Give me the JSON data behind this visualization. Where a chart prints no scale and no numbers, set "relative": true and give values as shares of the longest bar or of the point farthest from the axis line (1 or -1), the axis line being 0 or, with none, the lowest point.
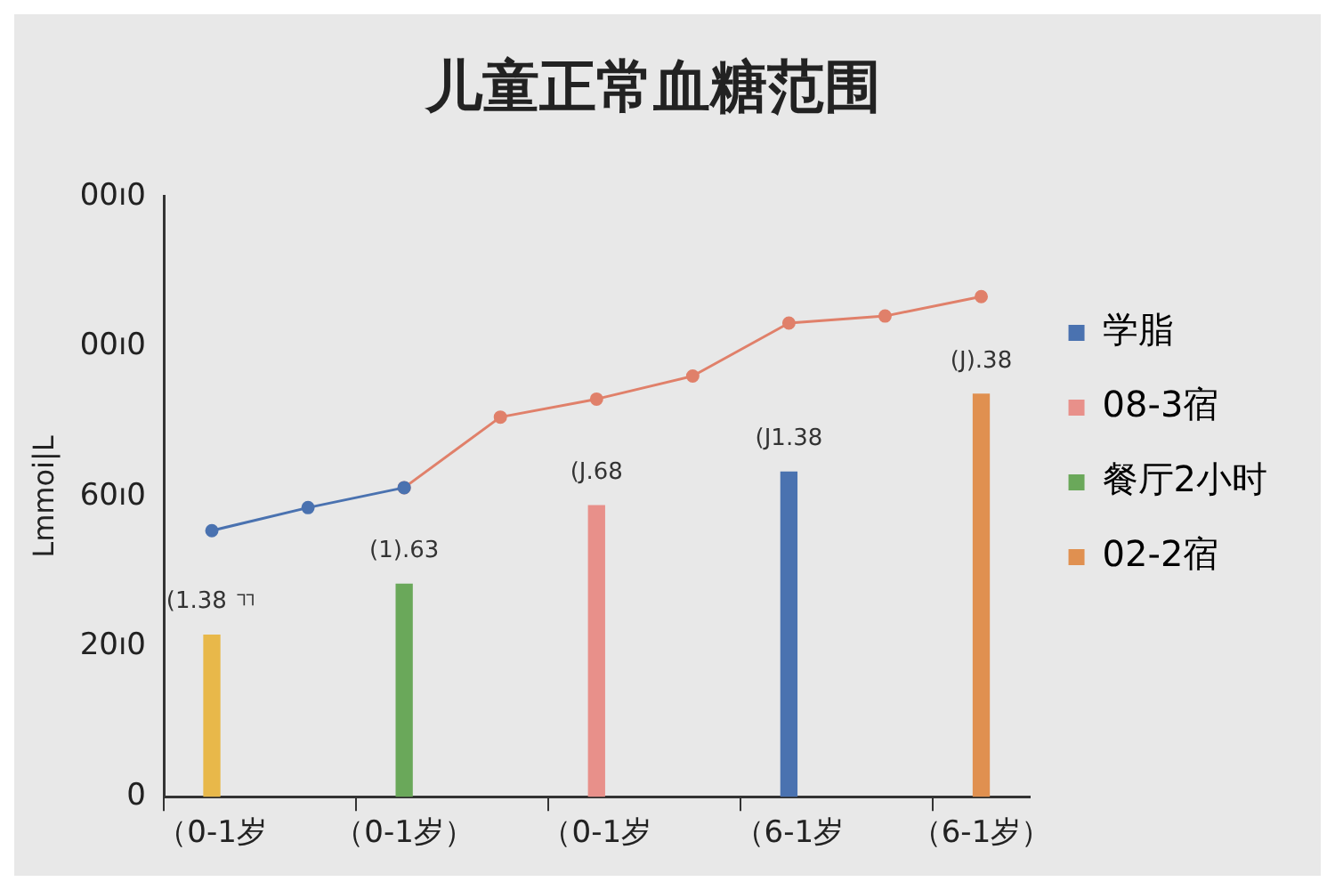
{
  "chart_data": {
    "type": "bar",
    "title": "儿童正常血糖范围",
    "ylabel": "Lmmoi|L",
    "relative": true,
    "categories": [
      "（0-1岁",
      null,
      "（0-1岁）",
      null,
      "（0-1岁",
      null,
      "（6-1岁",
      null,
      "（6-1岁）"
    ],
    "series": [
      {
        "color": "#e8b84a",
        "values": [
          0.323,
          null,
          null,
          null,
          null,
          null,
          null,
          null,
          null
        ]
      },
      {
        "name": "学脂",
        "color": "#4a72b0",
        "values": [
          null,
          null,
          null,
          null,
          null,
          null,
          0.649,
          null,
          null
        ]
      },
      {
        "name": "08-3宿",
        "color": "#e8908a",
        "values": [
          null,
          null,
          null,
          null,
          0.582,
          null,
          null,
          null,
          null
        ]
      },
      {
        "name": "餐厅2小时",
        "color": "#6aa85a",
        "values": [
          null,
          null,
          0.425,
          null,
          null,
          null,
          null,
          null,
          null
        ]
      },
      {
        "name": "02-2宿",
        "color": "#e09050",
        "values": [
          null,
          null,
          null,
          null,
          null,
          null,
          null,
          null,
          0.805
        ]
      },
      {
        "type": "line",
        "color": "#4a72b0",
        "values": [
          0.532,
          0.578,
          0.618,
          null,
          null,
          null,
          null,
          null,
          null
        ]
      },
      {
        "type": "line",
        "color": "#e0806a",
        "values": [
          null,
          null,
          0.618,
          0.759,
          0.795,
          0.841,
          0.947,
          0.961,
          1
        ]
      }
    ],
    "annotations": [
      "0",
      "20ı0",
      "60ı0",
      "00ı0",
      "00ı0",
      {
        "text": "(1.38 ㄲ",
        "x": "（0-1岁",
        "y": 0.323
      },
      {
        "text": "(1).63",
        "x": "（0-1岁）",
        "y": 0.425
      },
      {
        "text": "(J1.38",
        "x": "（6-1岁",
        "y": 0.649
      },
      {
        "text": "(J).38",
        "x": "（6-1岁）",
        "y": 0.805
      },
      "(J.68"
    ],
    "grid": false,
    "legend": "right",
    "marker": "circle",
    "line_style": "solid"
  }
}
